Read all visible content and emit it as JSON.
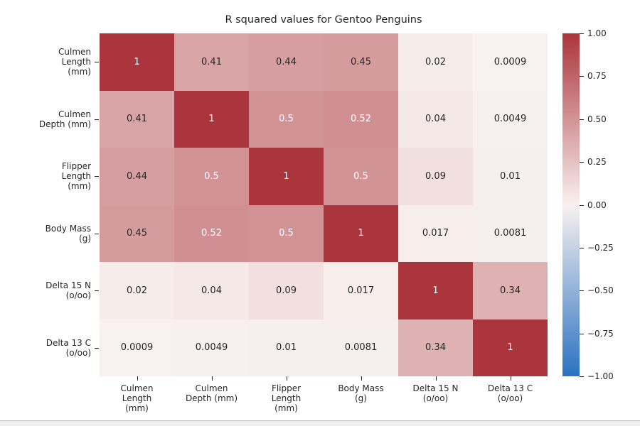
{
  "title": "R squared values for Gentoo Penguins",
  "chart_data": {
    "type": "heatmap",
    "title": "R squared values for Gentoo Penguins",
    "categories": [
      "Culmen Length (mm)",
      "Culmen Depth (mm)",
      "Flipper Length (mm)",
      "Body Mass (g)",
      "Delta 15 N (o/oo)",
      "Delta 13 C (o/oo)"
    ],
    "y_tick_lines": [
      [
        "Culmen",
        "Length",
        "(mm)"
      ],
      [
        "Culmen",
        "Depth (mm)"
      ],
      [
        "Flipper",
        "Length",
        "(mm)"
      ],
      [
        "Body Mass",
        "(g)"
      ],
      [
        "Delta 15 N",
        "(o/oo)"
      ],
      [
        "Delta 13 C",
        "(o/oo)"
      ]
    ],
    "x_tick_lines": [
      [
        "Culmen",
        "Length",
        "(mm)"
      ],
      [
        "Culmen",
        "Depth (mm)"
      ],
      [
        "Flipper",
        "Length",
        "(mm)"
      ],
      [
        "Body Mass",
        "(g)"
      ],
      [
        "Delta 15 N",
        "(o/oo)"
      ],
      [
        "Delta 13 C",
        "(o/oo)"
      ]
    ],
    "matrix": [
      [
        "1",
        "0.41",
        "0.44",
        "0.45",
        "0.02",
        "0.0009"
      ],
      [
        "0.41",
        "1",
        "0.5",
        "0.52",
        "0.04",
        "0.0049"
      ],
      [
        "0.44",
        "0.5",
        "1",
        "0.5",
        "0.09",
        "0.01"
      ],
      [
        "0.45",
        "0.52",
        "0.5",
        "1",
        "0.017",
        "0.0081"
      ],
      [
        "0.02",
        "0.04",
        "0.09",
        "0.017",
        "1",
        "0.34"
      ],
      [
        "0.0009",
        "0.0049",
        "0.01",
        "0.0081",
        "0.34",
        "1"
      ]
    ],
    "colorbar": {
      "tick_labels": [
        "1.00",
        "0.75",
        "0.50",
        "0.25",
        "0.00",
        "−0.25",
        "−0.50",
        "−0.75",
        "−1.00"
      ],
      "vmin": -1,
      "vmax": 1,
      "color_max": "#ab353c",
      "color_mid": "#f8f1ef",
      "color_min": "#2b72c2"
    },
    "annotation_white_threshold": 0.5,
    "legend_position": "right",
    "grid": false
  },
  "colors": {
    "background": "#ffffff",
    "tick_text": "#262626",
    "annotation_dark": "#262626",
    "annotation_light": "#ffffff"
  }
}
